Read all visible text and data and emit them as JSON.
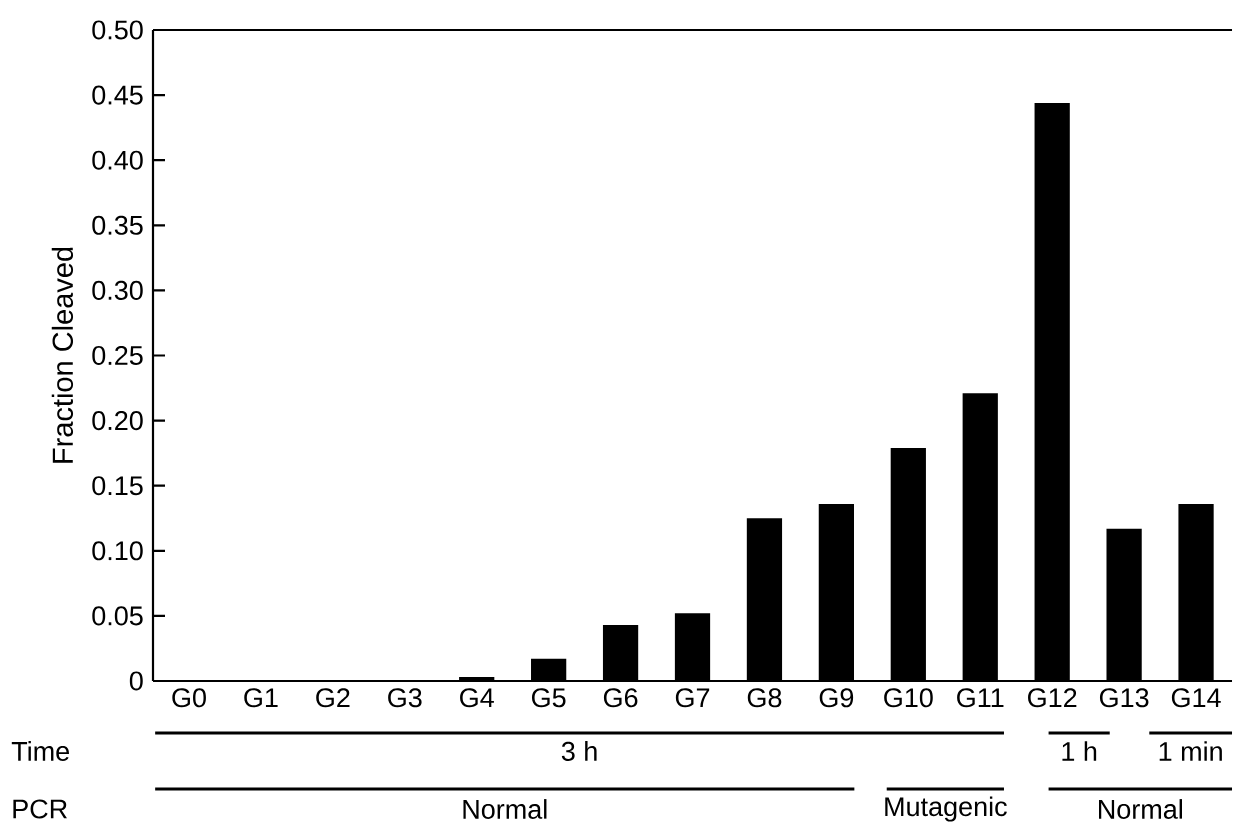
{
  "chart_data": {
    "type": "bar",
    "ylabel": "Fraction Cleaved",
    "categories": [
      "G0",
      "G1",
      "G2",
      "G3",
      "G4",
      "G5",
      "G6",
      "G7",
      "G8",
      "G9",
      "G10",
      "G11",
      "G12",
      "G13",
      "G14"
    ],
    "values": [
      0,
      0,
      0,
      0,
      0.003,
      0.017,
      0.043,
      0.052,
      0.125,
      0.136,
      0.179,
      0.221,
      0.444,
      0.117,
      0.136
    ],
    "color": "#000000",
    "ylim": [
      0,
      0.5
    ],
    "yticks": [
      0,
      {
        "value": 0.05,
        "label": "0.05"
      },
      {
        "value": 0.1,
        "label": "0.10"
      },
      {
        "value": 0.15,
        "label": "0.15"
      },
      {
        "value": 0.2,
        "label": "0.20"
      },
      {
        "value": 0.25,
        "label": "0.25"
      },
      {
        "value": 0.3,
        "label": "0.30"
      },
      {
        "value": 0.35,
        "label": "0.35"
      },
      {
        "value": 0.4,
        "label": "0.40"
      },
      {
        "value": 0.45,
        "label": "0.45"
      },
      {
        "value": 0.5,
        "label": "0.50"
      }
    ],
    "annotations": [
      "Time",
      "3 h",
      "1 h",
      "1 min",
      "PCR",
      "Normal",
      "Mutagenic",
      "Normal"
    ]
  }
}
